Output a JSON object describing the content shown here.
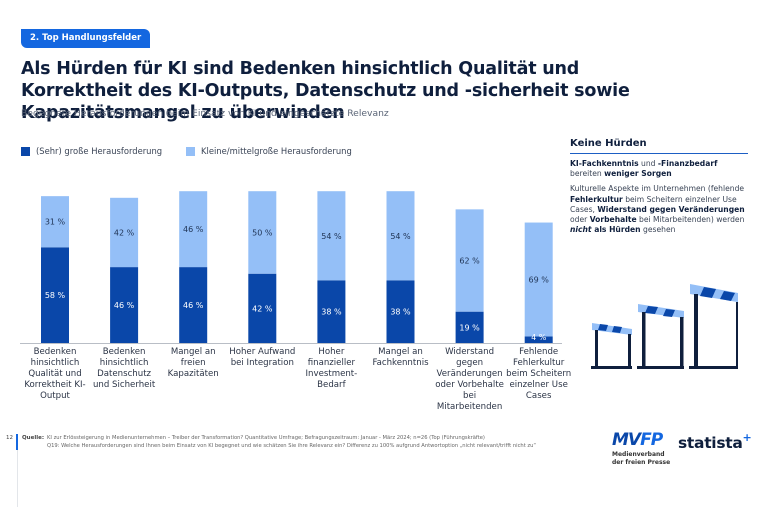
{
  "badge": "2. Top Handlungsfelder",
  "title": "Als Hürden für KI sind Bedenken hinsichtlich Qualität und Korrektheit des KI-Outputs, Datenschutz und -sicherheit sowie Kapazitätsmangel zu überwinden",
  "subtitle": "Begegnete Herausforderungen beim Einsatz von KI und eingeschätzte Relevanz",
  "colors": {
    "dark": "#0a47a9",
    "light": "#94bff7",
    "accent": "#1467e0",
    "text": "#0f1f3d"
  },
  "chart_data": {
    "type": "bar",
    "stacked": true,
    "title": "",
    "xlabel": "",
    "ylabel": "",
    "ylim": [
      0,
      100
    ],
    "grid": false,
    "legend_position": "top-left",
    "unit": "%",
    "categories": [
      "Bedenken hinsichtlich Qualität und Korrektheit KI-Output",
      "Bedenken hinsichtlich Datenschutz und Sicherheit",
      "Mangel an freien Kapazitäten",
      "Hoher Aufwand bei Integration",
      "Hoher finanzieller Investment-Bedarf",
      "Mangel an Fachkenntnis",
      "Widerstand gegen Veränderungen oder Vorbehalte bei Mitarbeitenden",
      "Fehlende Fehlerkultur beim Scheitern einzelner Use Cases"
    ],
    "series": [
      {
        "name": "(Sehr) große Herausforderung",
        "color": "#0a47a9",
        "values": [
          58,
          46,
          46,
          42,
          38,
          38,
          19,
          4
        ]
      },
      {
        "name": "Kleine/mittelgroße Herausforderung",
        "color": "#94bff7",
        "values": [
          31,
          42,
          46,
          50,
          54,
          54,
          62,
          69
        ]
      }
    ]
  },
  "side_panel": {
    "heading": "Keine Hürden",
    "p1": [
      {
        "t": "KI-Fachkenntnis",
        "b": true
      },
      {
        "t": " und ",
        "b": false
      },
      {
        "t": "-Finanzbedarf",
        "b": true
      },
      {
        "t": " bereiten ",
        "b": false
      },
      {
        "t": "weniger Sorgen",
        "b": true
      }
    ],
    "p2": [
      {
        "t": "Kulturelle Aspekte im Unternehmen (fehlende ",
        "b": false
      },
      {
        "t": "Fehlerkultur",
        "b": true
      },
      {
        "t": " beim Scheitern einzelner Use Cases, ",
        "b": false
      },
      {
        "t": "Widerstand gegen Veränderungen",
        "b": true
      },
      {
        "t": " oder ",
        "b": false
      },
      {
        "t": "Vorbehalte",
        "b": true
      },
      {
        "t": " bei Mitarbeitenden) werden ",
        "b": false
      },
      {
        "t": "nicht",
        "b": true,
        "i": true
      },
      {
        "t": " als Hürden",
        "b": true
      },
      {
        "t": " gesehen",
        "b": false
      }
    ],
    "illustration": "hurdles-icon"
  },
  "footer": {
    "page": "12",
    "source_label": "Quelle:",
    "source_line1": "KI zur Erlössteigerung in Medienunternehmen – Treiber der Transformation? Quantitative Umfrage; Befragungszeitraum: Januar - März 2024; n=26 (Top (Führungskräfte)",
    "source_line2": "Q19: Welche Herausforderungen sind Ihnen beim Einsatz von KI begegnet und wie schätzen Sie ihre Relevanz ein? Differenz zu 100% aufgrund Antwortoption „nicht relevant/trifft nicht zu“"
  },
  "logos": {
    "mvfp": "MVFP",
    "mvfp_sub1": "Medienverband",
    "mvfp_sub2": "der freien Presse",
    "statista": "statista",
    "statista_plus": "+"
  }
}
